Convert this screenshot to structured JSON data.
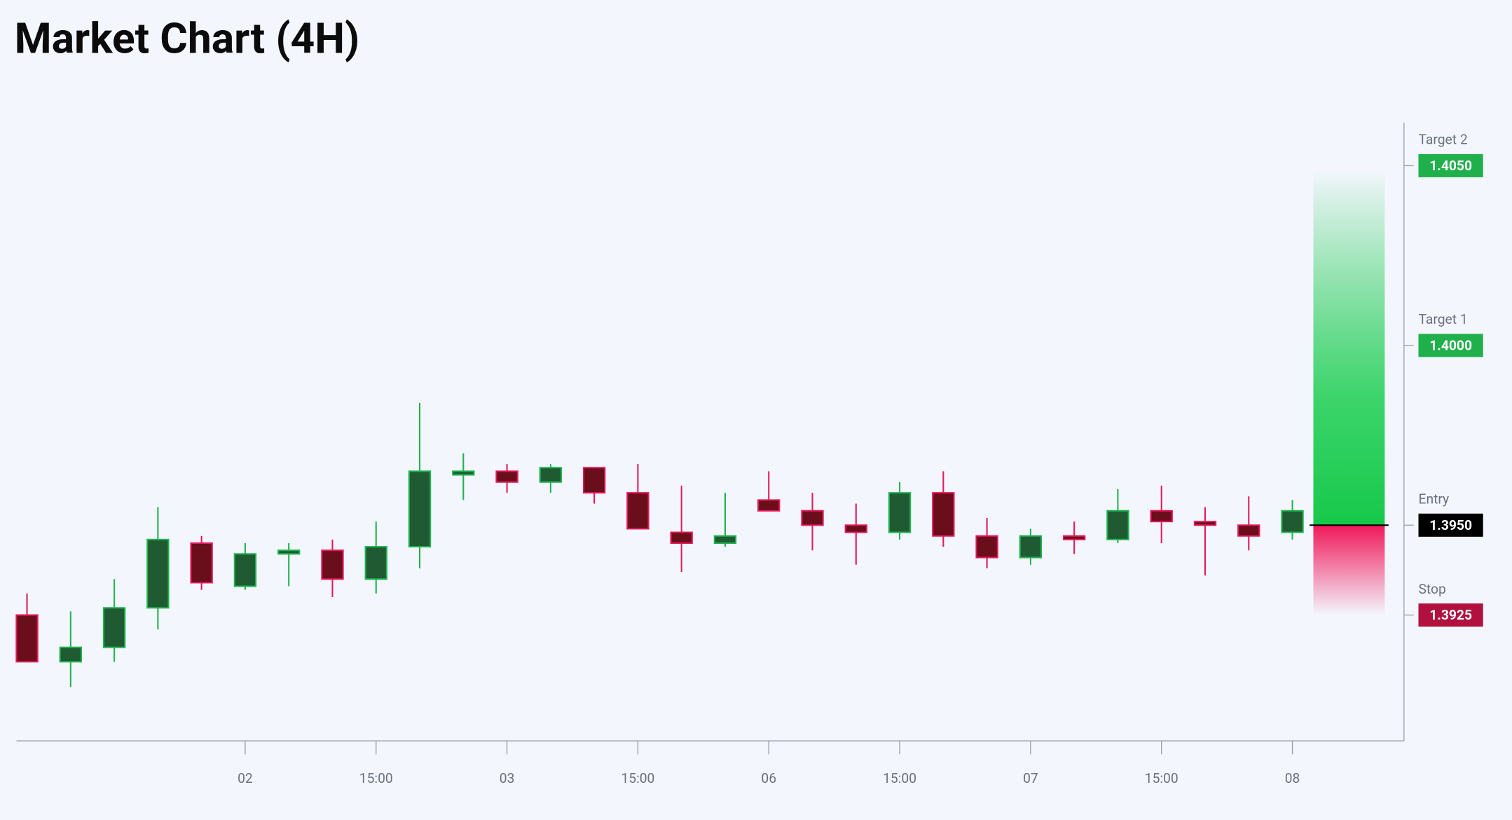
{
  "chart_data": {
    "type": "candlestick",
    "title": "Market Chart (4H)",
    "categories": [
      null,
      null,
      null,
      null,
      null,
      "02",
      null,
      null,
      "15:00",
      null,
      null,
      "03",
      null,
      null,
      "15:00",
      null,
      null,
      "06",
      null,
      null,
      "15:00",
      null,
      null,
      "07",
      null,
      null,
      "15:00",
      null,
      null,
      "08"
    ],
    "open": [
      1.3925,
      1.3912,
      1.3916,
      1.3927,
      1.3945,
      1.3933,
      1.3942,
      1.3943,
      1.3935,
      1.3944,
      1.3964,
      1.3965,
      1.3962,
      1.3966,
      1.3959,
      1.3948,
      1.3945,
      1.3957,
      1.3954,
      1.395,
      1.3948,
      1.3959,
      1.3947,
      1.3941,
      1.3947,
      1.3946,
      1.3954,
      1.3951,
      1.395,
      1.3948
    ],
    "high": [
      1.3931,
      1.3926,
      1.3935,
      1.3955,
      1.3947,
      1.3945,
      1.3945,
      1.3946,
      1.3951,
      1.3984,
      1.397,
      1.3967,
      1.3967,
      1.3966,
      1.3967,
      1.3961,
      1.3959,
      1.3965,
      1.3959,
      1.3956,
      1.3962,
      1.3965,
      1.3952,
      1.3949,
      1.3951,
      1.396,
      1.3961,
      1.3955,
      1.3958,
      1.3957
    ],
    "low": [
      1.3912,
      1.3905,
      1.3912,
      1.3921,
      1.3932,
      1.3932,
      1.3933,
      1.393,
      1.3931,
      1.3938,
      1.3957,
      1.3959,
      1.3959,
      1.3956,
      1.3949,
      1.3937,
      1.3944,
      1.3954,
      1.3943,
      1.3939,
      1.3946,
      1.3944,
      1.3938,
      1.3939,
      1.3942,
      1.3945,
      1.3945,
      1.3936,
      1.3943,
      1.3946
    ],
    "close": [
      1.3912,
      1.3916,
      1.3927,
      1.3946,
      1.3934,
      1.3942,
      1.3943,
      1.3935,
      1.3944,
      1.3965,
      1.3965,
      1.3962,
      1.3966,
      1.3959,
      1.3949,
      1.3945,
      1.3947,
      1.3954,
      1.395,
      1.3948,
      1.3959,
      1.3947,
      1.3941,
      1.3947,
      1.3946,
      1.3954,
      1.3951,
      1.395,
      1.3947,
      1.3954
    ],
    "up_color": "#1f5a32",
    "up_edge": "#1fb34f",
    "down_color": "#6a0e1b",
    "down_edge": "#e3195a",
    "ylim": [
      1.389,
      1.4062
    ],
    "yticks": [
      1.3925,
      {
        "value": 1.395,
        "label": "1.3950"
      },
      {
        "value": 1.4,
        "label": "1.4000"
      },
      {
        "value": 1.405,
        "label": "1.4050"
      }
    ],
    "ytick_names": [
      "Stop",
      "Entry",
      "Target 1",
      "Target 2"
    ],
    "ytick_colors": [
      "#b0113f",
      "#000000",
      "#1faf4b",
      "#1faf4b"
    ]
  }
}
